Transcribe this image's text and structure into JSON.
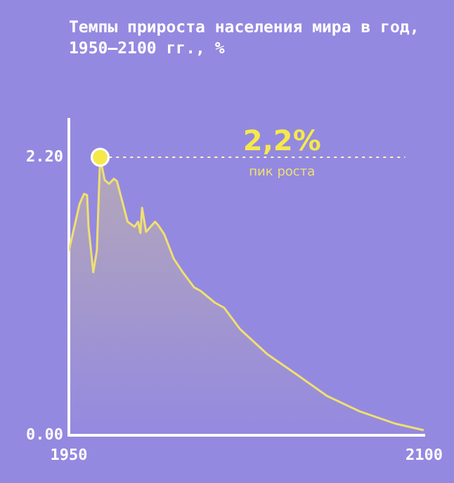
{
  "chart_data": {
    "type": "area",
    "title": "Темпы прироста населения мира в год, 1950–2100 гг., %",
    "x": [
      1950,
      1954.5,
      1956.4,
      1957.7,
      1958.3,
      1960.3,
      1961.8,
      1963.2,
      1965.1,
      1967,
      1969,
      1970.3,
      1974.8,
      1977.7,
      1979.2,
      1980.2,
      1980.9,
      1982.6,
      1984.5,
      1986.4,
      1987.8,
      1990.3,
      1994.2,
      1998.1,
      2002.9,
      2005.8,
      2011.6,
      2015.5,
      2022.3,
      2033.9,
      2045.5,
      2059.1,
      2072.7,
      2088.2,
      2099.8
    ],
    "series": [
      {
        "type": "line",
        "color": "#fff8c0",
        "line_style": "dotted",
        "x": [
          1967,
          2092
        ],
        "values": [
          2.2,
          2.2
        ]
      },
      {
        "color": "#f0e070",
        "values": [
          1.46,
          1.83,
          1.91,
          1.9,
          1.65,
          1.29,
          1.46,
          2.2,
          2.02,
          1.99,
          2.03,
          2.01,
          1.69,
          1.65,
          1.69,
          1.6,
          1.8,
          1.61,
          1.65,
          1.69,
          1.66,
          1.59,
          1.4,
          1.29,
          1.17,
          1.14,
          1.05,
          1.01,
          0.84,
          0.64,
          0.49,
          0.31,
          0.19,
          0.09,
          0.04
        ]
      }
    ],
    "xlim": [
      1950,
      2100
    ],
    "xticks": [
      1950,
      2100
    ],
    "ylim": [
      0,
      2.5
    ],
    "yticks": [
      {
        "value": 0,
        "label": "0.00"
      },
      {
        "value": 2.2,
        "label": "2.20"
      }
    ],
    "grid": false,
    "legend": false,
    "marker": "none",
    "annotations": [
      {
        "text": "2,2%",
        "x": 2040,
        "y": 2.2
      },
      {
        "text": "пик роста",
        "x": 2040,
        "y": 2.2
      }
    ]
  }
}
